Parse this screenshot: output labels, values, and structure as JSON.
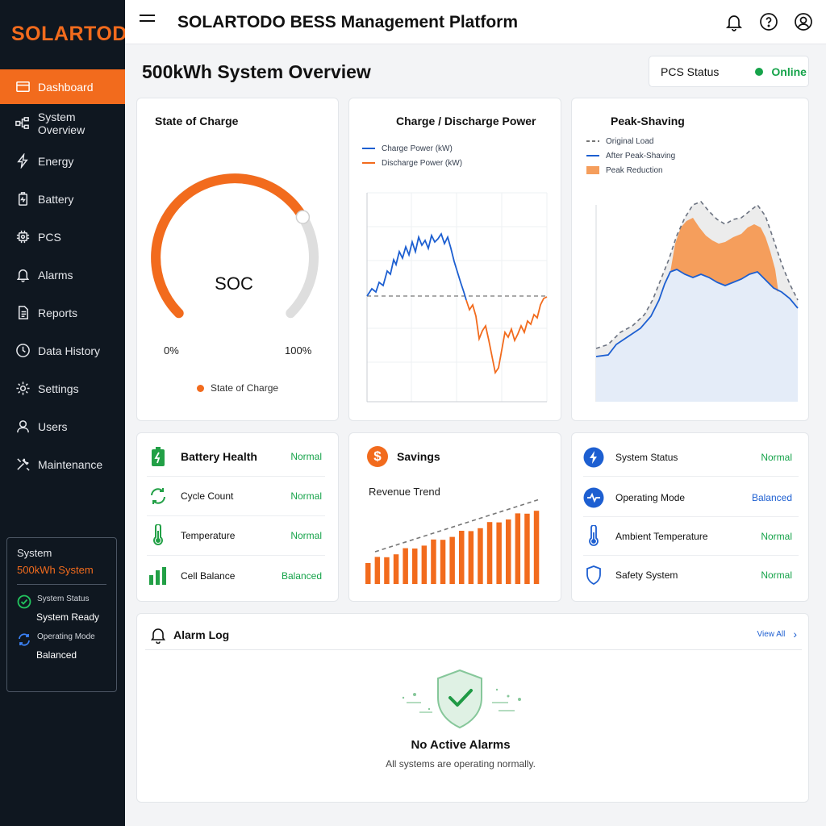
{
  "brand": "SOLARTODO",
  "header": {
    "title": "SOLARTODO BESS Management Platform"
  },
  "nav": {
    "items": [
      {
        "label": "Dashboard"
      },
      {
        "label": "System Overview"
      },
      {
        "label": "Energy"
      },
      {
        "label": "Battery"
      },
      {
        "label": "PCS"
      },
      {
        "label": "Alarms"
      },
      {
        "label": "Reports"
      },
      {
        "label": "Data History"
      },
      {
        "label": "Settings"
      },
      {
        "label": "Users"
      },
      {
        "label": "Maintenance"
      }
    ]
  },
  "system_card": {
    "title": "System",
    "name": "500kWh System",
    "status_label": "System Status",
    "status_value": "System Ready",
    "mode_label": "Operating Mode",
    "mode_value": "Balanced"
  },
  "page": {
    "title": "500kWh System Overview"
  },
  "pcs": {
    "label": "PCS Status",
    "value": "Online"
  },
  "soc": {
    "title": "State of Charge",
    "center": "SOC",
    "min": "0%",
    "max": "100%",
    "legend": "State of Charge",
    "level": 0.72
  },
  "power": {
    "title": "Charge / Discharge Power",
    "legend_charge": "Charge Power (kW)",
    "legend_discharge": "Discharge Power (kW)"
  },
  "peak": {
    "title": "Peak-Shaving",
    "legend_original": "Original Load",
    "legend_after": "After Peak-Shaving",
    "legend_reduction": "Peak Reduction"
  },
  "health": {
    "title": "Battery Health",
    "title_status": "Normal",
    "rows": [
      {
        "name": "Cycle Count",
        "status": "Normal"
      },
      {
        "name": "Temperature",
        "status": "Normal"
      },
      {
        "name": "Cell Balance",
        "status": "Balanced"
      }
    ]
  },
  "savings": {
    "title": "Savings",
    "subtitle": "Revenue Trend"
  },
  "status_list": {
    "rows": [
      {
        "name": "System Status",
        "status": "Normal"
      },
      {
        "name": "Operating Mode",
        "status": "Balanced"
      },
      {
        "name": "Ambient Temperature",
        "status": "Normal"
      },
      {
        "name": "Safety System",
        "status": "Normal"
      }
    ]
  },
  "alarm": {
    "title": "Alarm Log",
    "view_all": "View All",
    "empty_title": "No Active Alarms",
    "empty_sub": "All systems are operating normally."
  },
  "colors": {
    "accent": "#f26b1d",
    "ok": "#16a34a",
    "blue": "#1d5fd1",
    "sidebar": "#0f1720"
  }
}
